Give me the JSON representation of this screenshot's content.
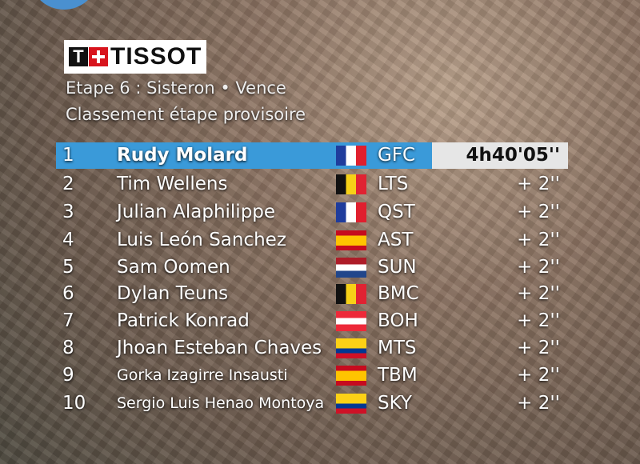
{
  "header": {
    "logo": "TISSOT",
    "stage": "Etape 6 : Sisteron • Vence",
    "subtitle": "Classement étape provisoire"
  },
  "table": {
    "rows": [
      [
        "1",
        "Rudy Molard",
        "GFC",
        "4h40'05''"
      ],
      [
        "2",
        "Tim Wellens",
        "LTS",
        "+ 2''"
      ],
      [
        "3",
        "Julian Alaphilippe",
        "QST",
        "+ 2''"
      ],
      [
        "4",
        "Luis León Sanchez",
        "AST",
        "+ 2''"
      ],
      [
        "5",
        "Sam Oomen",
        "SUN",
        "+ 2''"
      ],
      [
        "6",
        "Dylan Teuns",
        "BMC",
        "+ 2''"
      ],
      [
        "7",
        "Patrick Konrad",
        "BOH",
        "+ 2''"
      ],
      [
        "8",
        "Jhoan Esteban Chaves",
        "MTS",
        "+ 2''"
      ],
      [
        "9",
        "Gorka Izagirre Insausti",
        "TBM",
        "+ 2''"
      ],
      [
        "10",
        "Sergio Luis Henao Montoya",
        "SKY",
        "+ 2''"
      ]
    ]
  }
}
